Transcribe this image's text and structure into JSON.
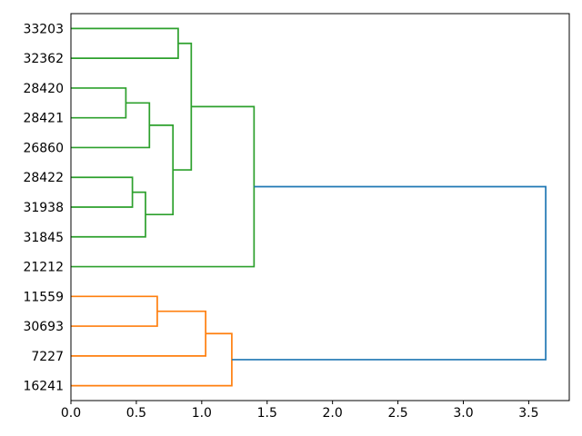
{
  "figure": {
    "background": "#ffffff",
    "frame_color": "#000000"
  },
  "chart_data": {
    "type": "dendrogram",
    "orientation": "horizontal-leaves-left",
    "title": "",
    "xlabel": "",
    "ylabel": "",
    "grid": false,
    "legend": null,
    "leaves": [
      "33203",
      "32362",
      "28420",
      "28421",
      "26860",
      "28422",
      "31938",
      "31845",
      "21212",
      "11559",
      "30693",
      "7227",
      "16241"
    ],
    "axis": {
      "xlim": [
        0,
        3.81
      ],
      "xticks": [
        0.0,
        0.5,
        1.0,
        1.5,
        2.0,
        2.5,
        3.0,
        3.5
      ],
      "xtick_labels": [
        "0.0",
        "0.5",
        "1.0",
        "1.5",
        "2.0",
        "2.5",
        "3.0",
        "3.5"
      ]
    },
    "palette": {
      "green": "#2ca02c",
      "orange": "#ff7f0e",
      "blue": "#1f77b4"
    },
    "merges": [
      {
        "id": "A",
        "join": [
          "33203",
          "32362"
        ],
        "height": 0.82,
        "color": "green"
      },
      {
        "id": "B",
        "join": [
          "28420",
          "28421"
        ],
        "height": 0.42,
        "color": "green"
      },
      {
        "id": "C",
        "join": [
          "B",
          "26860"
        ],
        "height": 0.6,
        "color": "green"
      },
      {
        "id": "D",
        "join": [
          "28422",
          "31938"
        ],
        "height": 0.47,
        "color": "green"
      },
      {
        "id": "E",
        "join": [
          "D",
          "31845"
        ],
        "height": 0.57,
        "color": "green"
      },
      {
        "id": "F",
        "join": [
          "C",
          "E"
        ],
        "height": 0.78,
        "color": "green"
      },
      {
        "id": "G",
        "join": [
          "A",
          "F"
        ],
        "height": 0.92,
        "color": "green"
      },
      {
        "id": "H",
        "join": [
          "G",
          "21212"
        ],
        "height": 1.4,
        "color": "green"
      },
      {
        "id": "I",
        "join": [
          "11559",
          "30693"
        ],
        "height": 0.66,
        "color": "orange"
      },
      {
        "id": "J",
        "join": [
          "I",
          "7227"
        ],
        "height": 1.03,
        "color": "orange"
      },
      {
        "id": "K",
        "join": [
          "J",
          "16241"
        ],
        "height": 1.23,
        "color": "orange"
      },
      {
        "id": "ROOT",
        "join": [
          "H",
          "K"
        ],
        "height": 3.63,
        "color": "blue"
      }
    ]
  }
}
